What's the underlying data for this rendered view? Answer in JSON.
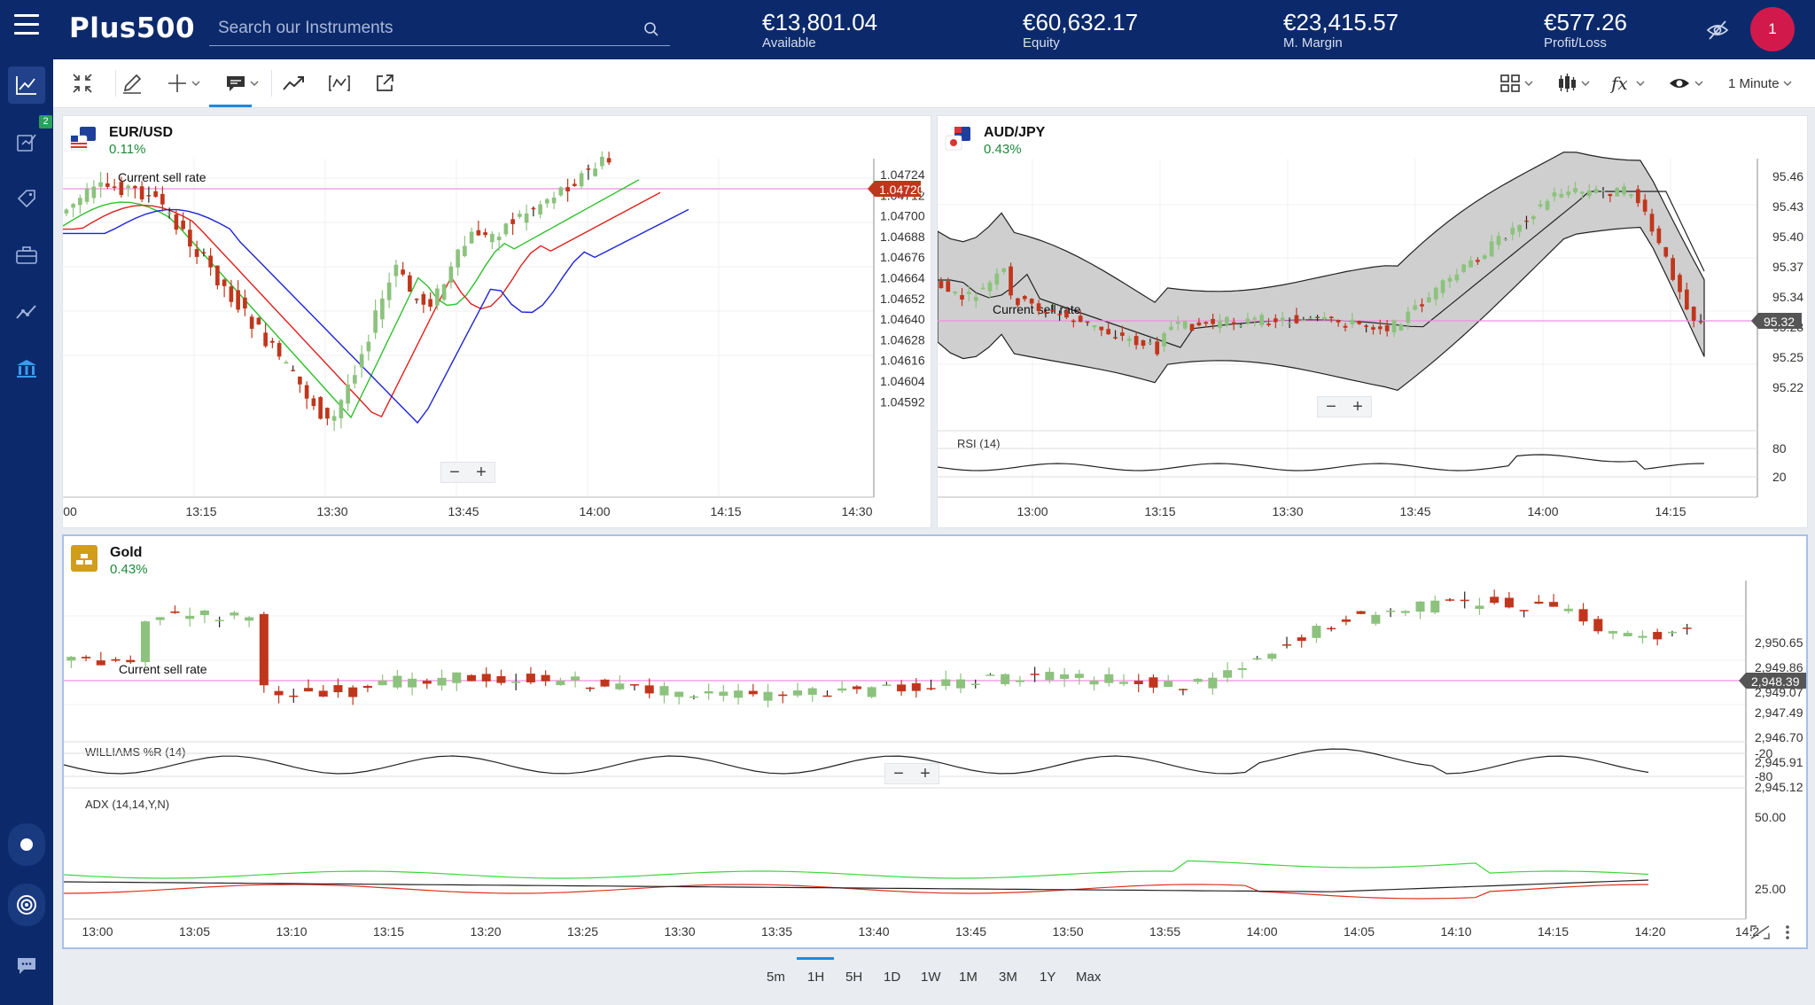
{
  "header": {
    "logo": "Plus500",
    "search_placeholder": "Search our Instruments",
    "metrics": [
      {
        "value": "€13,801.04",
        "label": "Available"
      },
      {
        "value": "€60,632.17",
        "label": "Equity"
      },
      {
        "value": "€23,415.57",
        "label": "M. Margin"
      },
      {
        "value": "€577.26",
        "label": "Profit/Loss"
      }
    ],
    "avatar": "1"
  },
  "sidebar": {
    "badge": "2"
  },
  "toolbar": {
    "interval": "1 Minute"
  },
  "panels": {
    "eurusd": {
      "name": "EUR/USD",
      "change": "0.11%",
      "sell_label": "Current sell rate",
      "price_tag": "1.04720",
      "y_ticks": [
        "1.04724",
        "1.04712",
        "1.04700",
        "1.04688",
        "1.04676",
        "1.04664",
        "1.04652",
        "1.04640",
        "1.04628",
        "1.04616",
        "1.04604",
        "1.04592"
      ],
      "x_ticks": [
        "00",
        "13:15",
        "13:30",
        "13:45",
        "14:00",
        "14:15",
        "14:30"
      ]
    },
    "audjpy": {
      "name": "AUD/JPY",
      "change": "0.43%",
      "sell_label": "Current sell rate",
      "price_tag": "95.32",
      "y_ticks": [
        "95.46",
        "95.43",
        "95.40",
        "95.37",
        "95.34",
        "95.28",
        "95.25",
        "95.22"
      ],
      "rsi_label": "RSI (14)",
      "rsi_ticks": [
        "80",
        "20"
      ],
      "x_ticks": [
        "13:00",
        "13:15",
        "13:30",
        "13:45",
        "14:00",
        "14:15"
      ]
    },
    "gold": {
      "name": "Gold",
      "change": "0.43%",
      "sell_label": "Current sell rate",
      "price_tag": "2,948.39",
      "y_ticks": [
        "2,950.65",
        "2,949.86",
        "2,949.07",
        "2,947.49",
        "2,946.70",
        "2,945.91",
        "2,945.12"
      ],
      "williams_label": "WILLIAMS %R (14)",
      "williams_ticks": [
        "-20",
        "-80"
      ],
      "adx_label": "ADX (14,14,Y,N)",
      "adx_ticks": [
        "50.00",
        "25.00"
      ],
      "x_ticks": [
        "13:00",
        "13:05",
        "13:10",
        "13:15",
        "13:20",
        "13:25",
        "13:30",
        "13:35",
        "13:40",
        "13:45",
        "13:50",
        "13:55",
        "14:00",
        "14:05",
        "14:10",
        "14:15",
        "14:20",
        "14:2"
      ]
    }
  },
  "periods": [
    "5m",
    "1H",
    "5H",
    "1D",
    "1W",
    "1M",
    "3M",
    "1Y",
    "Max"
  ],
  "colors": {
    "brand": "#0c2a6b",
    "up": "#8cc27d",
    "down": "#c0361c",
    "sell_line": "#f08ee0",
    "accent": "#1f8ae0"
  }
}
